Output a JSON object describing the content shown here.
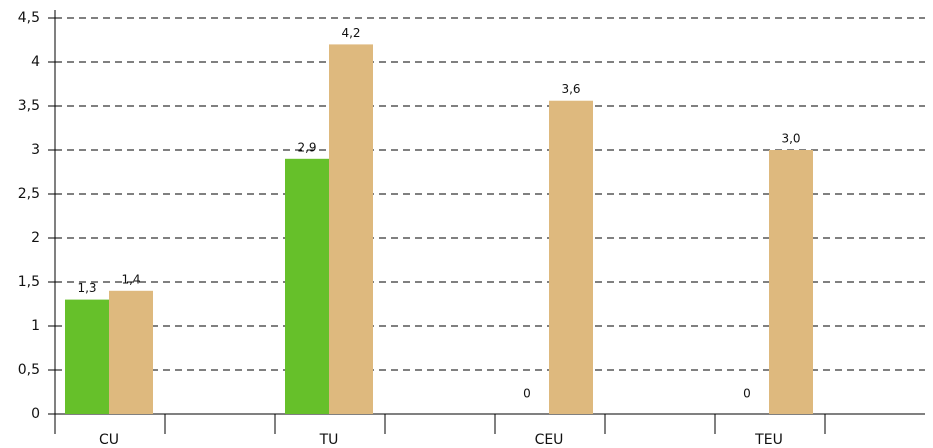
{
  "chart_data": {
    "type": "bar",
    "categories": [
      "CU",
      "TU",
      "CEU",
      "TEU"
    ],
    "series": [
      {
        "color": "#66c02a",
        "values": [
          1.3,
          2.9,
          0,
          0
        ],
        "value_labels": [
          "1,3",
          "2,9",
          "0",
          "0"
        ]
      },
      {
        "color": "#deb97e",
        "values": [
          1.4,
          4.2,
          3.56,
          3.0
        ],
        "value_labels": [
          "1,4",
          "4,2",
          "3,6",
          "3,0"
        ]
      }
    ],
    "ylim": [
      0,
      4.5
    ],
    "yticks": [
      0,
      {
        "value": 0.5,
        "label": "0,5"
      },
      1,
      {
        "value": 1.5,
        "label": "1,5"
      },
      2,
      {
        "value": 2.5,
        "label": "2,5"
      },
      3,
      {
        "value": 3.5,
        "label": "3,5"
      },
      4,
      {
        "value": 4.5,
        "label": "4,5"
      }
    ],
    "grid": true
  }
}
